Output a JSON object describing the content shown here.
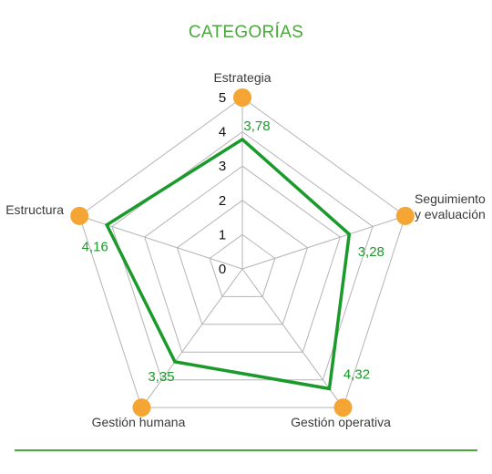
{
  "chart_data": {
    "type": "radar",
    "title": "CATEGORÍAS",
    "categories": [
      "Estrategia",
      "Seguimiento y evaluación",
      "Gestión operativa",
      "Gestión humana",
      "Estructura"
    ],
    "category_label_lines": [
      [
        "Estrategia"
      ],
      [
        "Seguimiento",
        "y evaluación"
      ],
      [
        "Gestión operativa"
      ],
      [
        "Gestión humana"
      ],
      [
        "Estructura"
      ]
    ],
    "values": [
      3.78,
      3.28,
      4.32,
      3.35,
      4.16
    ],
    "value_labels": [
      "3,78",
      "3,28",
      "4,32",
      "3,35",
      "4,16"
    ],
    "r_range": [
      0,
      5
    ],
    "ticks": [
      "0",
      "1",
      "2",
      "3",
      "4",
      "5"
    ],
    "grid": true,
    "colors": {
      "series": "#1a9a2a",
      "title": "#4aa83c",
      "value_label": "#1a9a2a",
      "grid": "#b4b4b4",
      "marker": "#f5a534",
      "rule": "#4aa83c"
    }
  }
}
